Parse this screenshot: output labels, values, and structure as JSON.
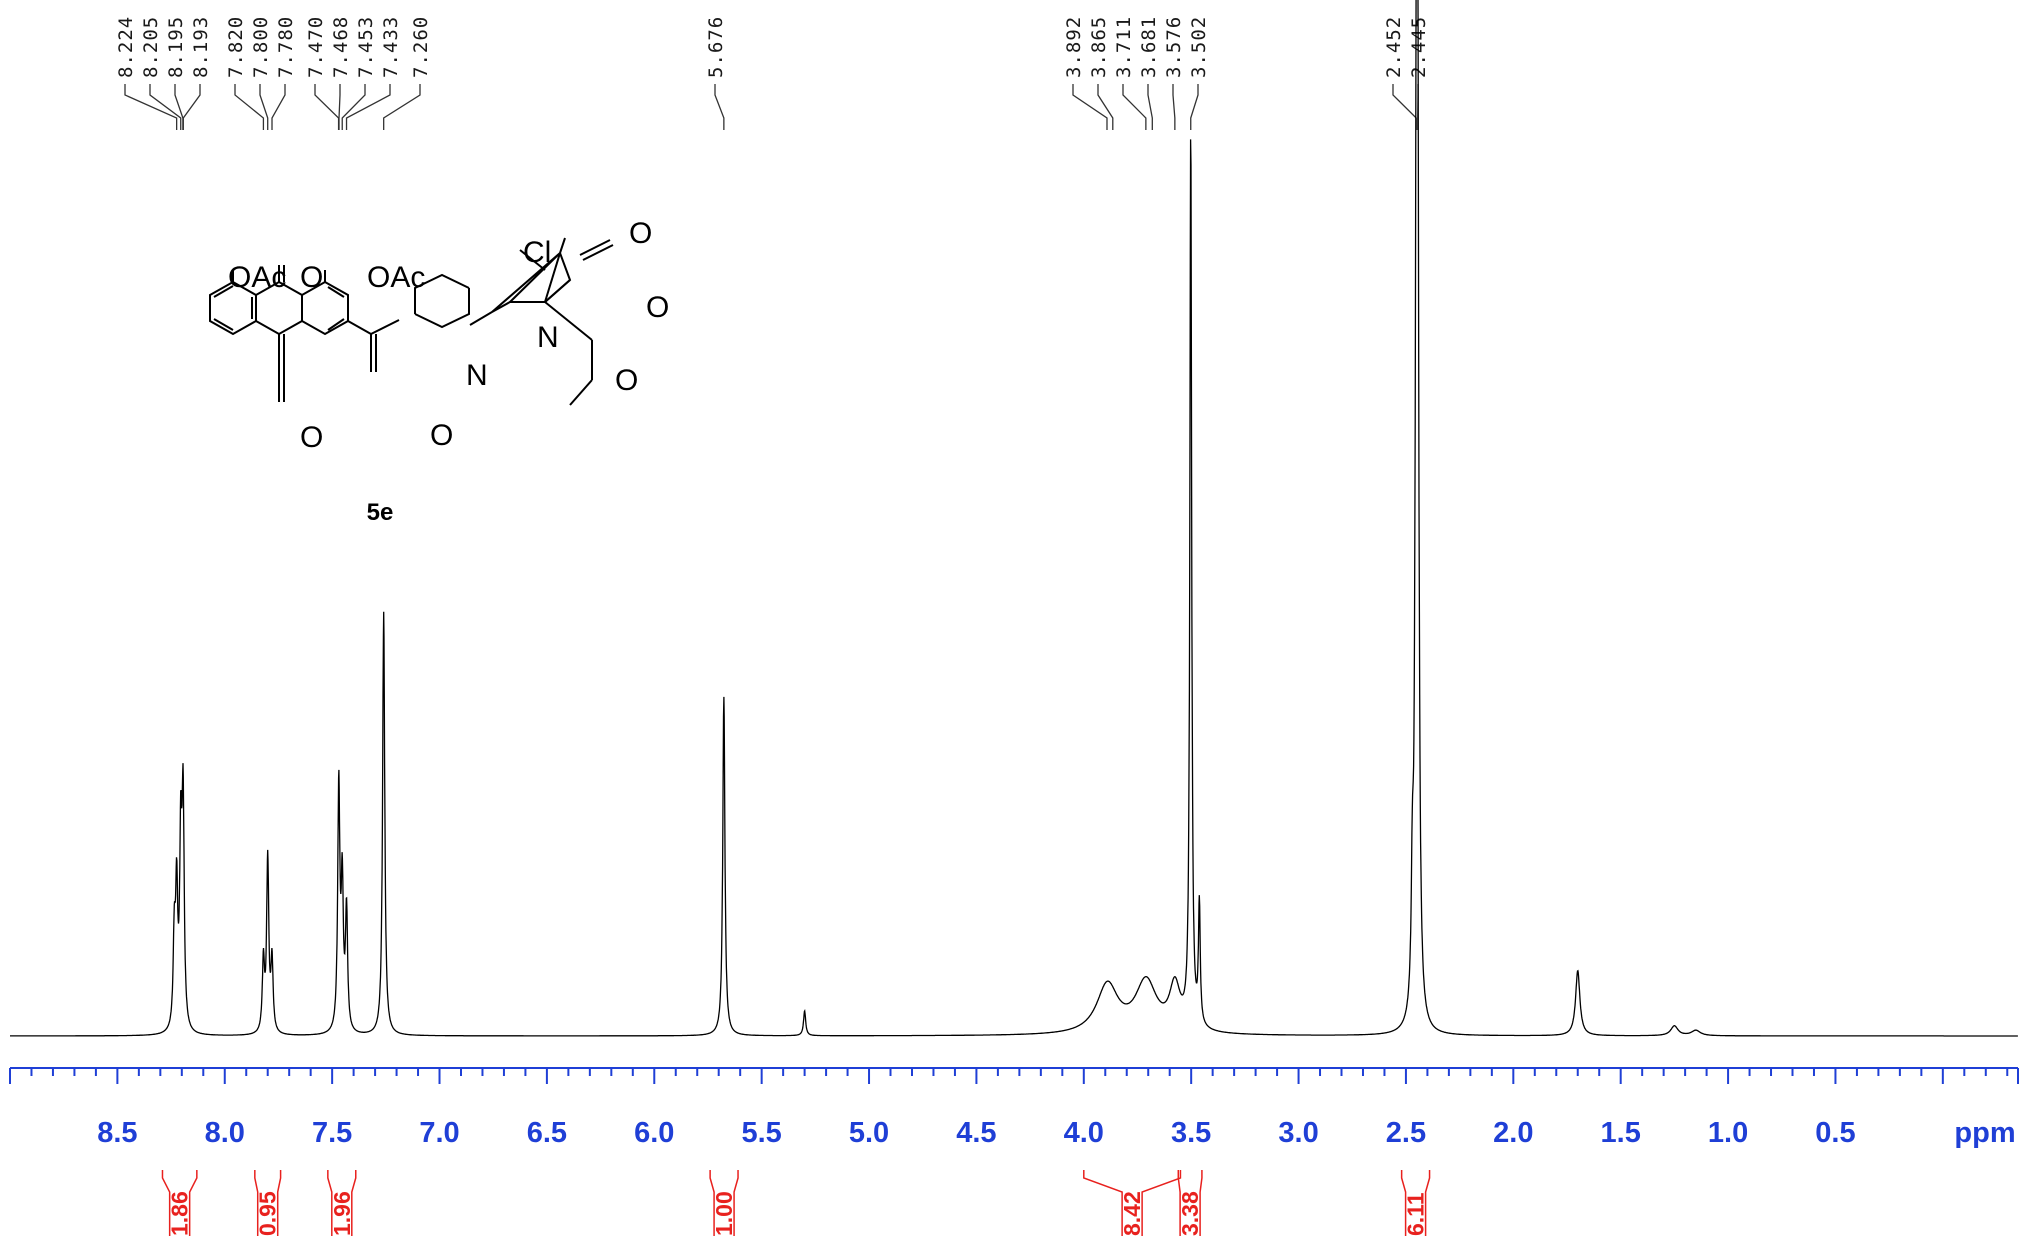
{
  "chart_data": {
    "type": "line",
    "title": "",
    "xlabel": "ppm",
    "ylabel": "",
    "xlim": [
      9.0,
      -0.35
    ],
    "x_reversed": true,
    "grid": false,
    "x_ticks": [
      "8.5",
      "8.0",
      "7.5",
      "7.0",
      "6.5",
      "6.0",
      "5.5",
      "5.0",
      "4.5",
      "4.0",
      "3.5",
      "3.0",
      "2.5",
      "2.0",
      "1.5",
      "1.0",
      "0.5"
    ],
    "x_tick_values": [
      8.5,
      8.0,
      7.5,
      7.0,
      6.5,
      6.0,
      5.5,
      5.0,
      4.5,
      4.0,
      3.5,
      3.0,
      2.5,
      2.0,
      1.5,
      1.0,
      0.5
    ],
    "peak_labels": [
      "8.224",
      "8.205",
      "8.195",
      "8.193",
      "7.820",
      "7.800",
      "7.780",
      "7.470",
      "7.468",
      "7.453",
      "7.433",
      "7.260",
      "5.676",
      "3.892",
      "3.865",
      "3.711",
      "3.681",
      "3.576",
      "3.502",
      "2.452",
      "2.445"
    ],
    "peaks": [
      {
        "x": 8.235,
        "y": 0.1,
        "w": 0.006
      },
      {
        "x": 8.224,
        "y": 0.15,
        "w": 0.006
      },
      {
        "x": 8.205,
        "y": 0.2,
        "w": 0.006
      },
      {
        "x": 8.194,
        "y": 0.25,
        "w": 0.006
      },
      {
        "x": 7.82,
        "y": 0.08,
        "w": 0.006
      },
      {
        "x": 7.8,
        "y": 0.195,
        "w": 0.006
      },
      {
        "x": 7.78,
        "y": 0.08,
        "w": 0.006
      },
      {
        "x": 7.469,
        "y": 0.275,
        "w": 0.006
      },
      {
        "x": 7.453,
        "y": 0.16,
        "w": 0.006
      },
      {
        "x": 7.433,
        "y": 0.135,
        "w": 0.006
      },
      {
        "x": 7.26,
        "y": 0.475,
        "w": 0.006
      },
      {
        "x": 5.676,
        "y": 0.38,
        "w": 0.006
      },
      {
        "x": 5.3,
        "y": 0.028,
        "w": 0.006
      },
      {
        "x": 3.89,
        "y": 0.055,
        "w": 0.06
      },
      {
        "x": 3.71,
        "y": 0.058,
        "w": 0.06
      },
      {
        "x": 3.576,
        "y": 0.05,
        "w": 0.03
      },
      {
        "x": 3.502,
        "y": 1.0,
        "w": 0.005
      },
      {
        "x": 3.462,
        "y": 0.135,
        "w": 0.005
      },
      {
        "x": 2.47,
        "y": 0.13,
        "w": 0.006
      },
      {
        "x": 2.452,
        "y": 0.82,
        "w": 0.006
      },
      {
        "x": 2.445,
        "y": 0.9,
        "w": 0.006
      },
      {
        "x": 1.7,
        "y": 0.073,
        "w": 0.012
      },
      {
        "x": 1.25,
        "y": 0.011,
        "w": 0.02
      },
      {
        "x": 1.15,
        "y": 0.006,
        "w": 0.025
      }
    ],
    "integrals": [
      {
        "from": 8.29,
        "to": 8.13,
        "value": "1.86"
      },
      {
        "from": 7.86,
        "to": 7.74,
        "value": "0.95"
      },
      {
        "from": 7.52,
        "to": 7.39,
        "value": "1.96"
      },
      {
        "from": 5.74,
        "to": 5.61,
        "value": "1.00"
      },
      {
        "from": 4.0,
        "to": 3.55,
        "value": "8.42"
      },
      {
        "from": 3.56,
        "to": 3.45,
        "value": "3.38"
      },
      {
        "from": 2.52,
        "to": 2.39,
        "value": "6.11"
      }
    ]
  },
  "structure": {
    "compound_label": "5e",
    "atoms": [
      "OAc",
      "O",
      "OAc",
      "Cl",
      "O",
      "N",
      "N",
      "O",
      "O",
      "O",
      "O"
    ]
  },
  "colors": {
    "axis": "#1f3fd6",
    "integral": "#e8211e",
    "spectrum": "#000000"
  }
}
